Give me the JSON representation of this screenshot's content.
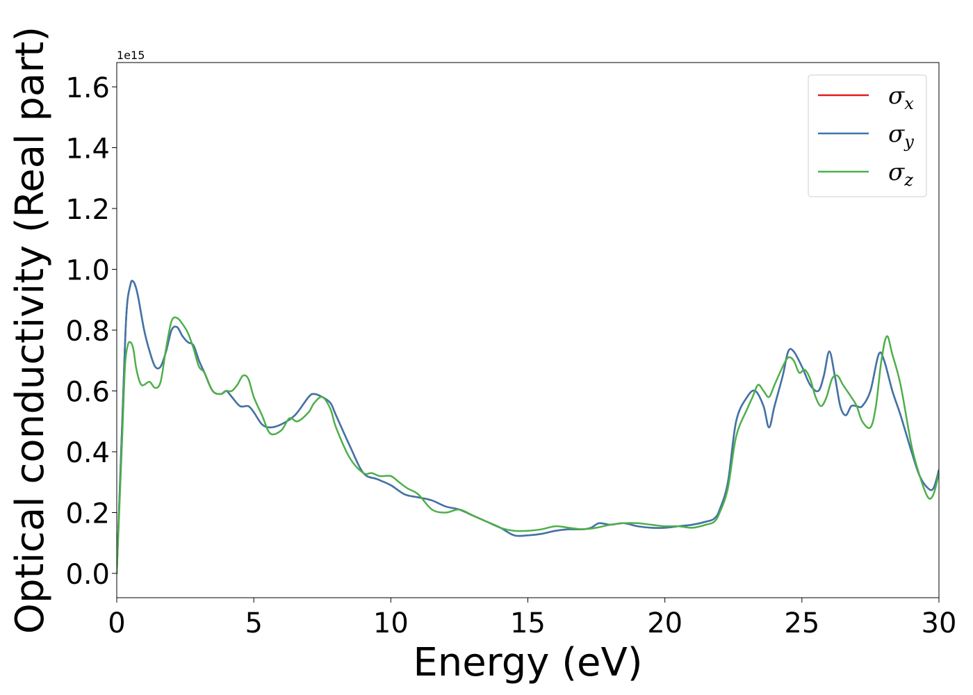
{
  "chart_data": {
    "type": "line",
    "title": "",
    "xlabel": "Energy (eV)",
    "ylabel": "Optical conductivity (Real part)",
    "y_offset_label": "1e15",
    "xlim": [
      0,
      30
    ],
    "ylim": [
      -0.08,
      1.68
    ],
    "x_ticks": [
      0,
      5,
      10,
      15,
      20,
      25,
      30
    ],
    "y_ticks": [
      0.0,
      0.2,
      0.4,
      0.6,
      0.8,
      1.0,
      1.2,
      1.4,
      1.6
    ],
    "x_tick_labels": [
      "0",
      "5",
      "10",
      "15",
      "20",
      "25",
      "30"
    ],
    "y_tick_labels": [
      "0.0",
      "0.2",
      "0.4",
      "0.6",
      "0.8",
      "1.0",
      "1.2",
      "1.4",
      "1.6"
    ],
    "grid": false,
    "legend_position": "top-right",
    "series": [
      {
        "name": "σx",
        "symbol": "σ",
        "subscript": "x",
        "color": "#e41a1c",
        "x": [
          0,
          0.2,
          0.35,
          0.5,
          0.6,
          0.7,
          0.8,
          1.0,
          1.2,
          1.4,
          1.6,
          1.8,
          2.0,
          2.2,
          2.4,
          2.6,
          2.8,
          3.0,
          3.2,
          3.5,
          3.8,
          4.0,
          4.2,
          4.5,
          4.8,
          5.0,
          5.3,
          5.6,
          6.0,
          6.5,
          7.0,
          7.2,
          7.5,
          7.8,
          8.0,
          8.5,
          9.0,
          9.5,
          10.0,
          10.5,
          11.0,
          11.5,
          12.0,
          12.5,
          13.0,
          13.5,
          14.0,
          14.5,
          15.0,
          15.5,
          16.0,
          16.5,
          17.0,
          17.3,
          17.6,
          18.0,
          18.5,
          19.0,
          19.5,
          20.0,
          20.5,
          21.0,
          21.5,
          21.8,
          22.0,
          22.3,
          22.6,
          23.0,
          23.3,
          23.6,
          23.8,
          24.0,
          24.3,
          24.5,
          24.7,
          25.0,
          25.3,
          25.6,
          25.8,
          26.0,
          26.2,
          26.4,
          26.6,
          26.8,
          27.0,
          27.2,
          27.5,
          27.8,
          28.0,
          28.3,
          28.6,
          29.0,
          29.3,
          29.6,
          29.8,
          30.0
        ],
        "y": [
          0.0,
          0.5,
          0.85,
          0.95,
          0.96,
          0.94,
          0.9,
          0.8,
          0.73,
          0.68,
          0.68,
          0.73,
          0.8,
          0.81,
          0.78,
          0.76,
          0.75,
          0.7,
          0.66,
          0.6,
          0.59,
          0.6,
          0.58,
          0.55,
          0.55,
          0.53,
          0.49,
          0.48,
          0.49,
          0.52,
          0.58,
          0.59,
          0.58,
          0.56,
          0.52,
          0.42,
          0.33,
          0.31,
          0.29,
          0.26,
          0.25,
          0.24,
          0.22,
          0.21,
          0.19,
          0.17,
          0.15,
          0.125,
          0.125,
          0.13,
          0.14,
          0.145,
          0.145,
          0.15,
          0.165,
          0.16,
          0.165,
          0.155,
          0.15,
          0.15,
          0.155,
          0.16,
          0.17,
          0.18,
          0.21,
          0.3,
          0.5,
          0.58,
          0.6,
          0.55,
          0.48,
          0.55,
          0.65,
          0.73,
          0.73,
          0.68,
          0.62,
          0.6,
          0.65,
          0.73,
          0.65,
          0.55,
          0.52,
          0.55,
          0.55,
          0.55,
          0.6,
          0.72,
          0.7,
          0.6,
          0.52,
          0.4,
          0.32,
          0.28,
          0.28,
          0.34
        ]
      },
      {
        "name": "σy",
        "symbol": "σ",
        "subscript": "y",
        "color": "#3a76ac",
        "x": [
          0,
          0.2,
          0.35,
          0.5,
          0.6,
          0.7,
          0.8,
          1.0,
          1.2,
          1.4,
          1.6,
          1.8,
          2.0,
          2.2,
          2.4,
          2.6,
          2.8,
          3.0,
          3.2,
          3.5,
          3.8,
          4.0,
          4.2,
          4.5,
          4.8,
          5.0,
          5.3,
          5.6,
          6.0,
          6.5,
          7.0,
          7.2,
          7.5,
          7.8,
          8.0,
          8.5,
          9.0,
          9.5,
          10.0,
          10.5,
          11.0,
          11.5,
          12.0,
          12.5,
          13.0,
          13.5,
          14.0,
          14.5,
          15.0,
          15.5,
          16.0,
          16.5,
          17.0,
          17.3,
          17.6,
          18.0,
          18.5,
          19.0,
          19.5,
          20.0,
          20.5,
          21.0,
          21.5,
          21.8,
          22.0,
          22.3,
          22.6,
          23.0,
          23.3,
          23.6,
          23.8,
          24.0,
          24.3,
          24.5,
          24.7,
          25.0,
          25.3,
          25.6,
          25.8,
          26.0,
          26.2,
          26.4,
          26.6,
          26.8,
          27.0,
          27.2,
          27.5,
          27.8,
          28.0,
          28.3,
          28.6,
          29.0,
          29.3,
          29.6,
          29.8,
          30.0
        ],
        "y": [
          0.0,
          0.5,
          0.85,
          0.95,
          0.96,
          0.94,
          0.9,
          0.8,
          0.73,
          0.68,
          0.68,
          0.73,
          0.8,
          0.81,
          0.78,
          0.76,
          0.75,
          0.7,
          0.66,
          0.6,
          0.59,
          0.6,
          0.58,
          0.55,
          0.55,
          0.53,
          0.49,
          0.48,
          0.49,
          0.52,
          0.58,
          0.59,
          0.58,
          0.56,
          0.52,
          0.42,
          0.33,
          0.31,
          0.29,
          0.26,
          0.25,
          0.24,
          0.22,
          0.21,
          0.19,
          0.17,
          0.15,
          0.125,
          0.125,
          0.13,
          0.14,
          0.145,
          0.145,
          0.15,
          0.165,
          0.16,
          0.165,
          0.155,
          0.15,
          0.15,
          0.155,
          0.16,
          0.17,
          0.18,
          0.21,
          0.3,
          0.5,
          0.58,
          0.6,
          0.55,
          0.48,
          0.55,
          0.65,
          0.73,
          0.73,
          0.68,
          0.62,
          0.6,
          0.65,
          0.73,
          0.65,
          0.55,
          0.52,
          0.55,
          0.55,
          0.55,
          0.6,
          0.72,
          0.7,
          0.6,
          0.52,
          0.4,
          0.32,
          0.28,
          0.28,
          0.34
        ]
      },
      {
        "name": "σz",
        "symbol": "σ",
        "subscript": "z",
        "color": "#4daf4a",
        "x": [
          0,
          0.2,
          0.3,
          0.4,
          0.5,
          0.6,
          0.7,
          0.8,
          0.9,
          1.0,
          1.2,
          1.4,
          1.6,
          1.8,
          2.0,
          2.2,
          2.4,
          2.6,
          2.8,
          3.0,
          3.2,
          3.5,
          3.8,
          4.0,
          4.2,
          4.4,
          4.6,
          4.8,
          5.0,
          5.3,
          5.6,
          6.0,
          6.3,
          6.6,
          7.0,
          7.2,
          7.5,
          7.8,
          8.0,
          8.5,
          9.0,
          9.3,
          9.6,
          10.0,
          10.3,
          10.6,
          11.0,
          11.5,
          12.0,
          12.5,
          13.0,
          13.5,
          14.0,
          14.5,
          15.0,
          15.5,
          16.0,
          16.5,
          17.0,
          17.5,
          18.0,
          18.5,
          19.0,
          19.5,
          20.0,
          20.5,
          21.0,
          21.5,
          21.8,
          22.0,
          22.3,
          22.6,
          23.0,
          23.2,
          23.4,
          23.6,
          23.8,
          24.0,
          24.3,
          24.5,
          24.7,
          24.9,
          25.1,
          25.3,
          25.5,
          25.7,
          25.9,
          26.1,
          26.3,
          26.5,
          26.8,
          27.0,
          27.2,
          27.5,
          27.7,
          27.9,
          28.1,
          28.3,
          28.6,
          29.0,
          29.3,
          29.6,
          29.8,
          30.0
        ],
        "y": [
          0.0,
          0.45,
          0.68,
          0.75,
          0.76,
          0.74,
          0.68,
          0.64,
          0.62,
          0.62,
          0.63,
          0.61,
          0.63,
          0.74,
          0.83,
          0.84,
          0.82,
          0.79,
          0.74,
          0.68,
          0.66,
          0.6,
          0.59,
          0.6,
          0.6,
          0.62,
          0.65,
          0.64,
          0.58,
          0.52,
          0.46,
          0.47,
          0.51,
          0.5,
          0.53,
          0.56,
          0.58,
          0.54,
          0.48,
          0.38,
          0.33,
          0.33,
          0.32,
          0.32,
          0.3,
          0.28,
          0.26,
          0.21,
          0.2,
          0.21,
          0.19,
          0.17,
          0.15,
          0.14,
          0.14,
          0.145,
          0.155,
          0.15,
          0.145,
          0.15,
          0.16,
          0.165,
          0.165,
          0.16,
          0.155,
          0.155,
          0.15,
          0.16,
          0.17,
          0.2,
          0.28,
          0.45,
          0.54,
          0.58,
          0.62,
          0.6,
          0.58,
          0.62,
          0.68,
          0.71,
          0.7,
          0.66,
          0.67,
          0.64,
          0.58,
          0.55,
          0.58,
          0.64,
          0.65,
          0.62,
          0.58,
          0.55,
          0.5,
          0.48,
          0.55,
          0.7,
          0.78,
          0.72,
          0.62,
          0.42,
          0.32,
          0.25,
          0.26,
          0.33
        ]
      }
    ]
  }
}
